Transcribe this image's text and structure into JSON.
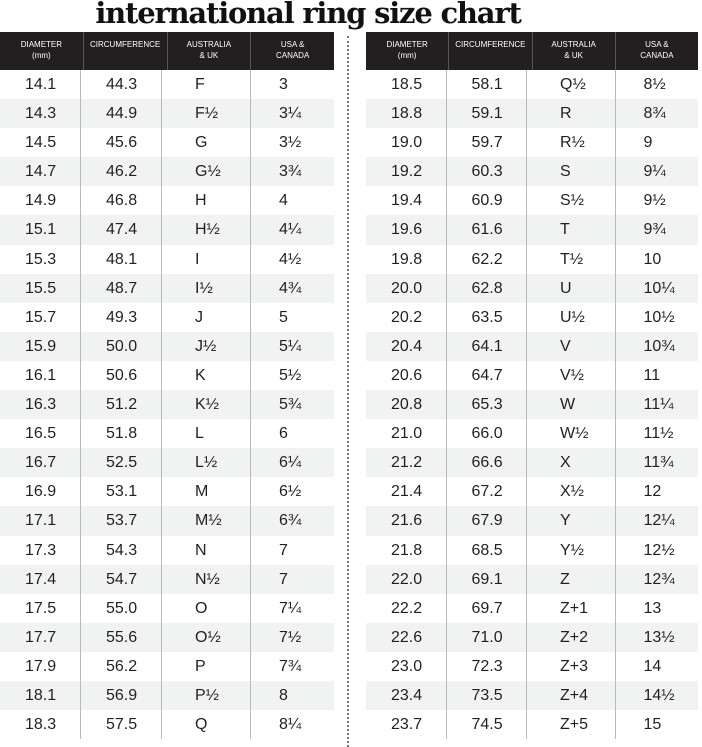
{
  "title": "international ring size chart",
  "headers": [
    "DIAMETER\n(mm)",
    "CIRCUMFERENCE",
    "AUSTRALIA\n& UK",
    "USA &\nCANADA"
  ],
  "left_rows": [
    [
      "14.1",
      "44.3",
      "F",
      "3"
    ],
    [
      "14.3",
      "44.9",
      "F½",
      "3¼"
    ],
    [
      "14.5",
      "45.6",
      "G",
      "3½"
    ],
    [
      "14.7",
      "46.2",
      "G½",
      "3¾"
    ],
    [
      "14.9",
      "46.8",
      "H",
      "4"
    ],
    [
      "15.1",
      "47.4",
      "H½",
      "4¼"
    ],
    [
      "15.3",
      "48.1",
      "I",
      "4½"
    ],
    [
      "15.5",
      "48.7",
      "I½",
      "4¾"
    ],
    [
      "15.7",
      "49.3",
      "J",
      "5"
    ],
    [
      "15.9",
      "50.0",
      "J½",
      "5¼"
    ],
    [
      "16.1",
      "50.6",
      "K",
      "5½"
    ],
    [
      "16.3",
      "51.2",
      "K½",
      "5¾"
    ],
    [
      "16.5",
      "51.8",
      "L",
      "6"
    ],
    [
      "16.7",
      "52.5",
      "L½",
      "6¼"
    ],
    [
      "16.9",
      "53.1",
      "M",
      "6½"
    ],
    [
      "17.1",
      "53.7",
      "M½",
      "6¾"
    ],
    [
      "17.3",
      "54.3",
      "N",
      "7"
    ],
    [
      "17.4",
      "54.7",
      "N½",
      "7"
    ],
    [
      "17.5",
      "55.0",
      "O",
      "7¼"
    ],
    [
      "17.7",
      "55.6",
      "O½",
      "7½"
    ],
    [
      "17.9",
      "56.2",
      "P",
      "7¾"
    ],
    [
      "18.1",
      "56.9",
      "P½",
      "8"
    ],
    [
      "18.3",
      "57.5",
      "Q",
      "8¼"
    ]
  ],
  "right_rows": [
    [
      "18.5",
      "58.1",
      "Q½",
      "8½"
    ],
    [
      "18.8",
      "59.1",
      "R",
      "8¾"
    ],
    [
      "19.0",
      "59.7",
      "R½",
      "9"
    ],
    [
      "19.2",
      "60.3",
      "S",
      "9¼"
    ],
    [
      "19.4",
      "60.9",
      "S½",
      "9½"
    ],
    [
      "19.6",
      "61.6",
      "T",
      "9¾"
    ],
    [
      "19.8",
      "62.2",
      "T½",
      "10"
    ],
    [
      "20.0",
      "62.8",
      "U",
      "10¼"
    ],
    [
      "20.2",
      "63.5",
      "U½",
      "10½"
    ],
    [
      "20.4",
      "64.1",
      "V",
      "10¾"
    ],
    [
      "20.6",
      "64.7",
      "V½",
      "11"
    ],
    [
      "20.8",
      "65.3",
      "W",
      "11¼"
    ],
    [
      "21.0",
      "66.0",
      "W½",
      "11½"
    ],
    [
      "21.2",
      "66.6",
      "X",
      "11¾"
    ],
    [
      "21.4",
      "67.2",
      "X½",
      "12"
    ],
    [
      "21.6",
      "67.9",
      "Y",
      "12¼"
    ],
    [
      "21.8",
      "68.5",
      "Y½",
      "12½"
    ],
    [
      "22.0",
      "69.1",
      "Z",
      "12¾"
    ],
    [
      "22.2",
      "69.7",
      "Z+1",
      "13"
    ],
    [
      "22.6",
      "71.0",
      "Z+2",
      "13½"
    ],
    [
      "23.0",
      "72.3",
      "Z+3",
      "14"
    ],
    [
      "23.4",
      "73.5",
      "Z+4",
      "14½"
    ],
    [
      "23.7",
      "74.5",
      "Z+5",
      "15"
    ]
  ],
  "colors": {
    "header_bg": "#231f20",
    "stripe": "#f1f2f2"
  }
}
